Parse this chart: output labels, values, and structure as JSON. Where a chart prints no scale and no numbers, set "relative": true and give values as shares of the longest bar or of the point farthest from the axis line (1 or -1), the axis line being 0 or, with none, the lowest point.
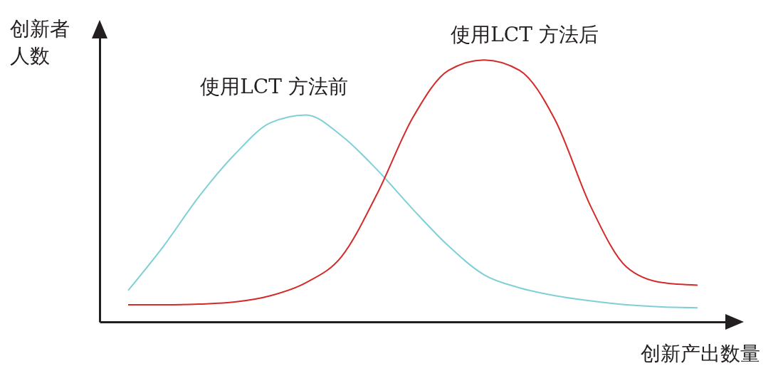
{
  "chart_data": {
    "type": "line",
    "relative": true,
    "xlabel": "创新产出数量",
    "ylabel": "创新者人数",
    "categories": [
      null,
      null,
      null,
      null,
      null,
      null,
      null,
      null,
      null,
      null,
      null,
      null,
      null,
      null,
      null,
      null,
      null
    ],
    "series": [
      {
        "name": "使用LCT 方法前",
        "color": "#7fd0d6",
        "values": [
          0.12,
          0.29,
          0.48,
          0.64,
          0.76,
          0.79,
          0.71,
          0.58,
          0.43,
          0.29,
          0.18,
          0.13,
          0.1,
          0.08,
          0.065,
          0.057,
          0.054
        ]
      },
      {
        "name": "使用LCT 方法后",
        "color": "#d42a2a",
        "values": [
          0.065,
          0.065,
          0.068,
          0.076,
          0.1,
          0.15,
          0.25,
          0.49,
          0.78,
          0.96,
          1,
          0.96,
          0.77,
          0.44,
          0.21,
          0.15,
          0.14
        ]
      }
    ]
  }
}
